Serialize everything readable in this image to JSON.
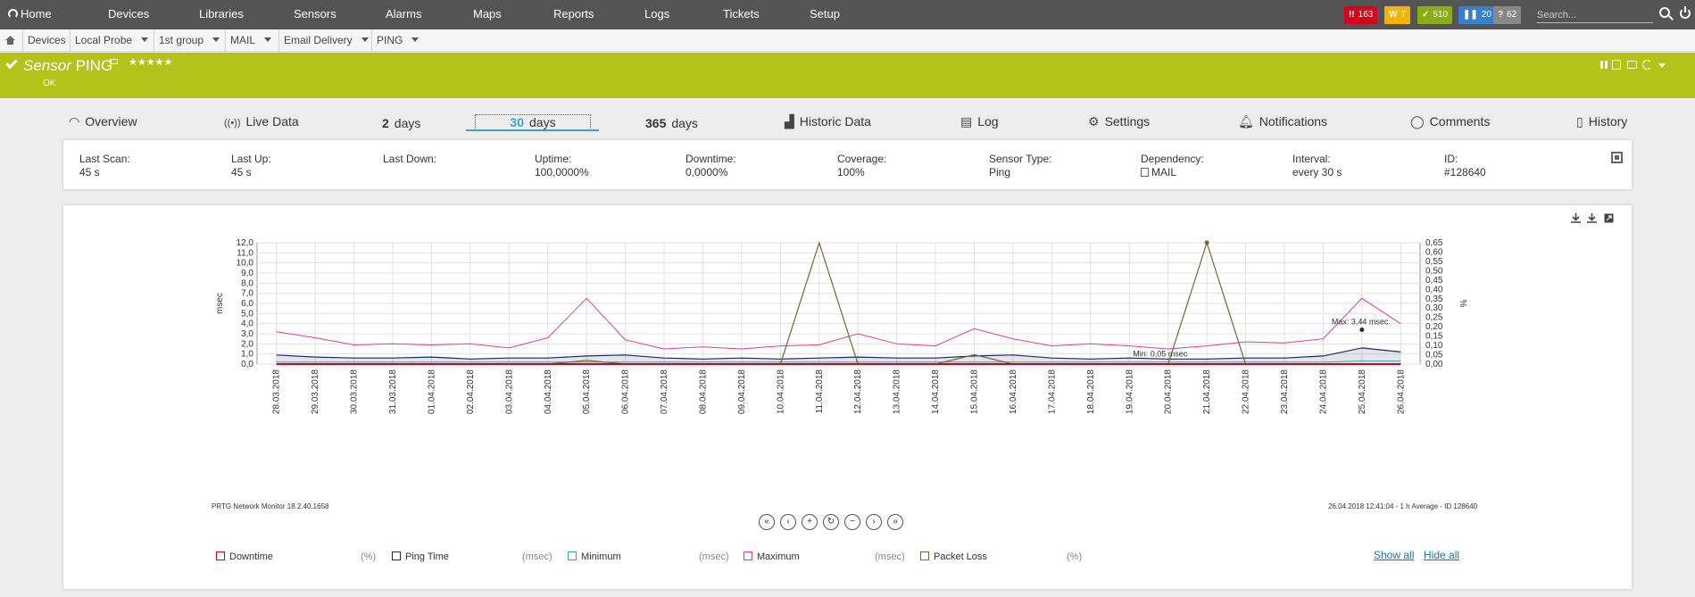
{
  "nav": {
    "home": "Home",
    "items": [
      "Devices",
      "Libraries",
      "Sensors",
      "Alarms",
      "Maps",
      "Reports",
      "Logs",
      "Tickets",
      "Setup"
    ],
    "badges": [
      {
        "icon": "!!",
        "count": "163",
        "color": "#d7001a"
      },
      {
        "icon": "W",
        "count": "7",
        "color": "#f4b400"
      },
      {
        "icon": "✓",
        "count": "510",
        "color": "#8aad14"
      },
      {
        "icon": "❚❚",
        "count": "20",
        "color": "#3a7fc9"
      },
      {
        "icon": "?",
        "count": "62",
        "color": "#888888"
      }
    ],
    "search_placeholder": "Search..."
  },
  "breadcrumb": [
    "Devices",
    "Local Probe",
    "1st group",
    "MAIL",
    "Email Delivery",
    "PING"
  ],
  "sensor": {
    "type_label": "Sensor",
    "name": "PING",
    "stars": "★★★★★",
    "status": "OK",
    "color": "#b4c317"
  },
  "tabs": {
    "overview": "Overview",
    "live": "Live Data",
    "days2_num": "2",
    "days2_unit": "days",
    "days30_num": "30",
    "days30_unit": "days",
    "days365_num": "365",
    "days365_unit": "days",
    "historic": "Historic Data",
    "log": "Log",
    "settings": "Settings",
    "notifications": "Notifications",
    "comments": "Comments",
    "history": "History"
  },
  "info": [
    {
      "label": "Last Scan:",
      "value": "45 s"
    },
    {
      "label": "Last Up:",
      "value": "45 s"
    },
    {
      "label": "Last Down:",
      "value": ""
    },
    {
      "label": "Uptime:",
      "value": "100,0000%"
    },
    {
      "label": "Downtime:",
      "value": "0,0000%"
    },
    {
      "label": "Coverage:",
      "value": "100%"
    },
    {
      "label": "Sensor Type:",
      "value": "Ping"
    },
    {
      "label": "Dependency:",
      "value": "MAIL"
    },
    {
      "label": "Interval:",
      "value": "every 30 s"
    },
    {
      "label": "ID:",
      "value": "#128640"
    }
  ],
  "graph": {
    "footer_left": "PRTG Network Monitor 18.2.40.1658",
    "footer_right": "26.04.2018 12:41:04 - 1 h Average - ID 128640",
    "show_all": "Show all",
    "hide_all": "Hide all"
  },
  "chart_data": {
    "type": "line",
    "ylabel": "msec",
    "y2label": "%",
    "ylim": [
      0,
      12
    ],
    "y2lim": [
      0,
      0.65
    ],
    "yticks": [
      "0,0",
      "1,0",
      "2,0",
      "3,0",
      "4,0",
      "5,0",
      "6,0",
      "7,0",
      "8,0",
      "9,0",
      "10,0",
      "11,0",
      "12,0"
    ],
    "y2ticks": [
      "0,00",
      "0,05",
      "0,10",
      "0,15",
      "0,20",
      "0,25",
      "0,30",
      "0,35",
      "0,40",
      "0,45",
      "0,50",
      "0,55",
      "0,60",
      "0,65"
    ],
    "x": [
      "28.03.2018",
      "29.03.2018",
      "30.03.2018",
      "31.03.2018",
      "01.04.2018",
      "02.04.2018",
      "03.04.2018",
      "04.04.2018",
      "05.04.2018",
      "06.04.2018",
      "07.04.2018",
      "08.04.2018",
      "09.04.2018",
      "10.04.2018",
      "11.04.2018",
      "12.04.2018",
      "13.04.2018",
      "14.04.2018",
      "15.04.2018",
      "16.04.2018",
      "17.04.2018",
      "18.04.2018",
      "19.04.2018",
      "20.04.2018",
      "21.04.2018",
      "22.04.2018",
      "23.04.2018",
      "24.04.2018",
      "25.04.2018",
      "26.04.2018"
    ],
    "legend_placement": "bottom",
    "annotations": [
      "Max: 3,44 msec",
      "Min: 0,05 msec"
    ],
    "series": [
      {
        "name": "Downtime",
        "unit": "(%)",
        "color": "#d7001a",
        "values": [
          0,
          0,
          0,
          0,
          0,
          0,
          0,
          0,
          0,
          0,
          0,
          0,
          0,
          0,
          0,
          0,
          0,
          0,
          0,
          0,
          0,
          0,
          0,
          0,
          0,
          0,
          0,
          0,
          0,
          0
        ]
      },
      {
        "name": "Ping Time",
        "unit": "(msec)",
        "color": "#1a2a5c",
        "values": [
          0.9,
          0.7,
          0.6,
          0.6,
          0.7,
          0.5,
          0.6,
          0.6,
          0.8,
          0.9,
          0.6,
          0.5,
          0.6,
          0.5,
          0.6,
          0.7,
          0.6,
          0.6,
          0.8,
          0.9,
          0.6,
          0.5,
          0.6,
          0.5,
          0.5,
          0.6,
          0.6,
          0.8,
          1.6,
          1.2
        ]
      },
      {
        "name": "Minimum",
        "unit": "(msec)",
        "color": "#3aa3a3",
        "values": [
          0.2,
          0.2,
          0.2,
          0.2,
          0.2,
          0.2,
          0.2,
          0.2,
          0.2,
          0.2,
          0.2,
          0.2,
          0.2,
          0.2,
          0.2,
          0.2,
          0.2,
          0.2,
          0.2,
          0.2,
          0.2,
          0.2,
          0.2,
          0.2,
          0.2,
          0.2,
          0.2,
          0.2,
          0.3,
          0.3
        ]
      },
      {
        "name": "Maximum",
        "unit": "(msec)",
        "color": "#e0418c",
        "values": [
          3.2,
          2.6,
          1.9,
          2.0,
          1.9,
          2.0,
          1.6,
          2.6,
          6.5,
          2.4,
          1.5,
          1.7,
          1.5,
          1.8,
          1.9,
          3.0,
          2.0,
          1.8,
          3.5,
          2.5,
          1.8,
          2.0,
          1.8,
          1.5,
          1.8,
          2.2,
          2.1,
          2.5,
          6.5,
          4.0
        ]
      },
      {
        "name": "Packet Loss",
        "unit": "(%)",
        "color": "#6d6b35",
        "values": [
          0,
          0,
          0,
          0,
          0,
          0,
          0,
          0,
          0.02,
          0,
          0,
          0,
          0,
          0,
          0.65,
          0,
          0,
          0,
          0.05,
          0,
          0,
          0,
          0,
          0,
          0.65,
          0,
          0,
          0,
          0,
          0
        ]
      }
    ]
  }
}
